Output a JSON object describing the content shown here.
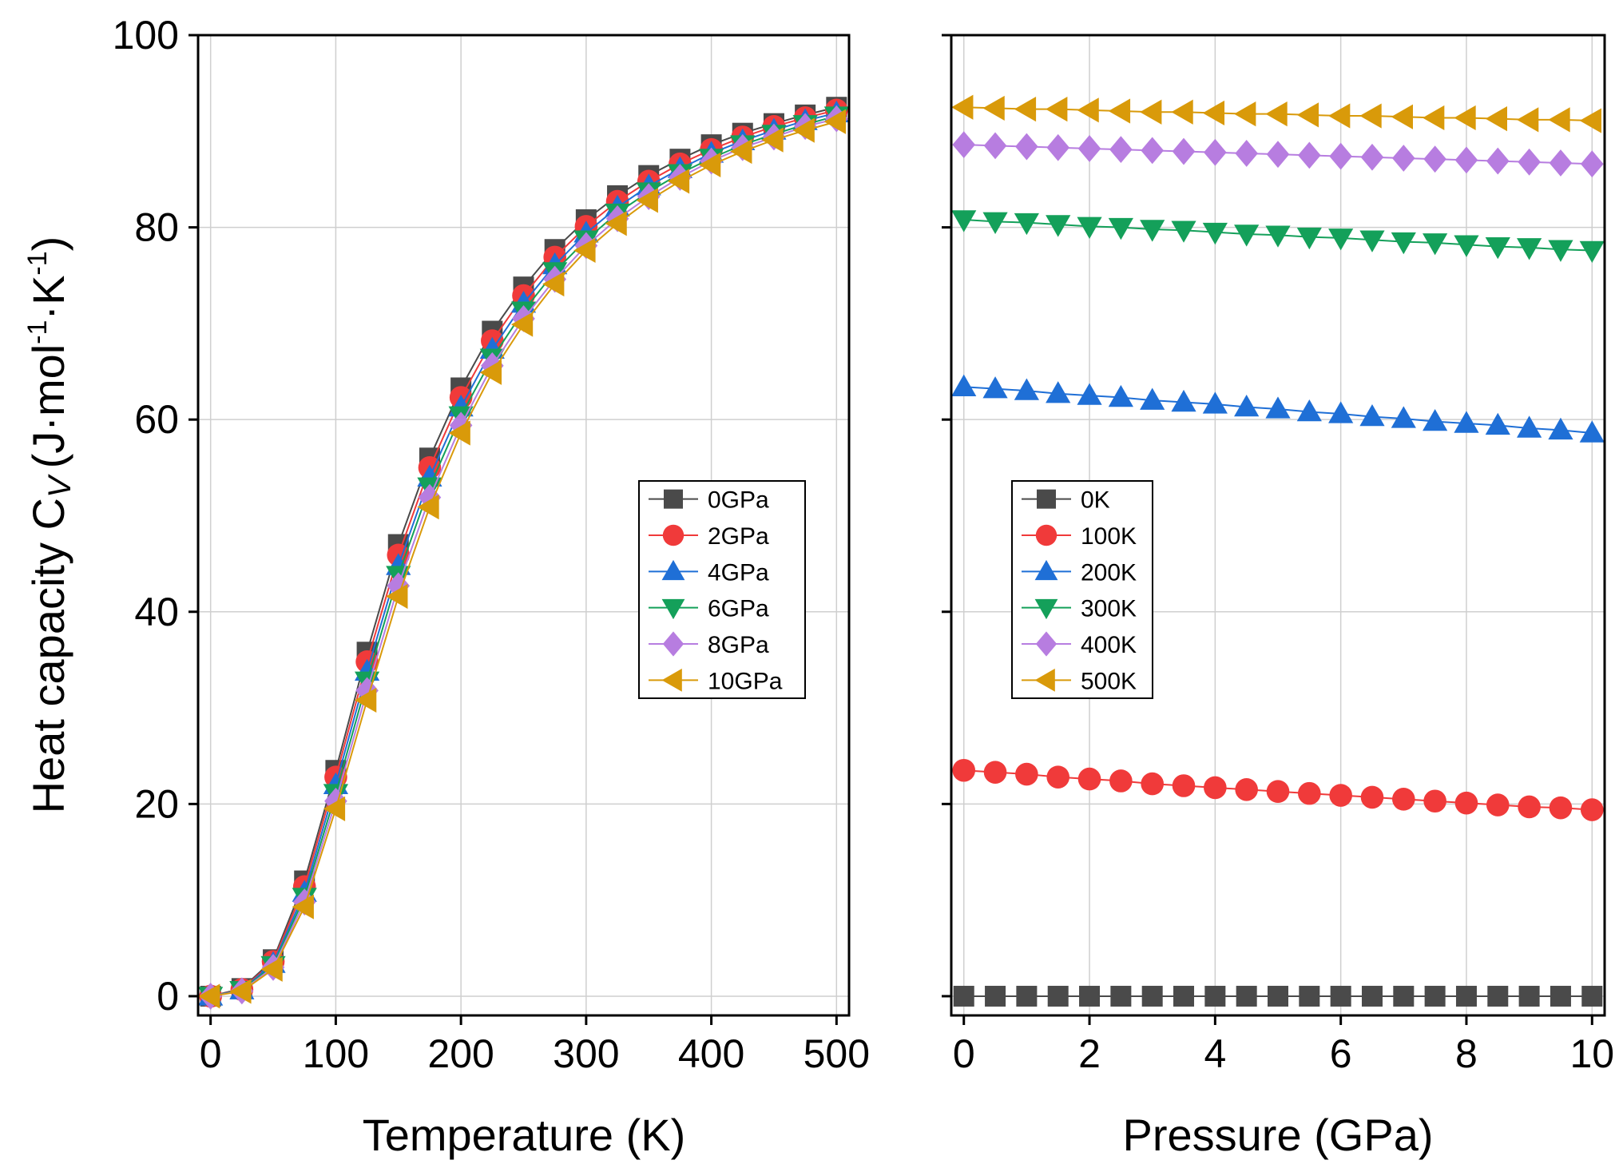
{
  "chart_data": [
    {
      "type": "line",
      "panel": "left",
      "title": "",
      "xlabel": "Temperature (K)",
      "ylabel": "Heat capacity C",
      "ylabel_sub": "V",
      "ylabel_units": "(J·mol",
      "ylabel_exp1": "-1",
      "ylabel_mid": "·K",
      "ylabel_exp2": "-1",
      "ylabel_close": ")",
      "xlim": [
        -10,
        510
      ],
      "ylim": [
        -2,
        100
      ],
      "xticks": [
        0,
        100,
        200,
        300,
        400,
        500
      ],
      "yticks": [
        0,
        20,
        40,
        60,
        80,
        100
      ],
      "grid": true,
      "legend_position": "center-right",
      "x": [
        0,
        25,
        50,
        75,
        100,
        125,
        150,
        175,
        200,
        225,
        250,
        275,
        300,
        325,
        350,
        375,
        400,
        425,
        450,
        475,
        500
      ],
      "series": [
        {
          "name": "0GPa",
          "color": "#4a4a4a",
          "marker": "square",
          "values": [
            0,
            0.8,
            3.8,
            12,
            23.5,
            35.8,
            47,
            56,
            63.3,
            69.2,
            73.8,
            77.7,
            80.8,
            83.3,
            85.4,
            87.1,
            88.6,
            89.8,
            90.8,
            91.7,
            92.5
          ]
        },
        {
          "name": "2GPa",
          "color": "#f03a3a",
          "marker": "circle",
          "values": [
            0,
            0.7,
            3.6,
            11.4,
            22.8,
            34.8,
            45.9,
            55,
            62.3,
            68.2,
            72.9,
            76.9,
            80.1,
            82.7,
            84.8,
            86.6,
            88.1,
            89.4,
            90.5,
            91.4,
            92.2
          ]
        },
        {
          "name": "4GPa",
          "color": "#1f6fd6",
          "marker": "triangle-up",
          "values": [
            0,
            0.65,
            3.4,
            10.8,
            22,
            33.8,
            44.8,
            54,
            61.3,
            67.3,
            72.1,
            76.1,
            79.4,
            82.1,
            84.3,
            86.1,
            87.7,
            89,
            90.1,
            91.1,
            91.9
          ]
        },
        {
          "name": "6GPa",
          "color": "#14a05a",
          "marker": "triangle-down",
          "values": [
            0,
            0.6,
            3.2,
            10.3,
            21.1,
            32.8,
            43.8,
            53,
            60.4,
            66.4,
            71.3,
            75.4,
            78.7,
            81.5,
            83.7,
            85.6,
            87.2,
            88.6,
            89.7,
            90.7,
            91.6
          ]
        },
        {
          "name": "8GPa",
          "color": "#b77de0",
          "marker": "diamond",
          "values": [
            0,
            0.55,
            3,
            9.8,
            20.3,
            31.8,
            42.7,
            51.9,
            59.4,
            65.6,
            70.5,
            74.6,
            78.1,
            80.9,
            83.2,
            85.2,
            86.9,
            88.3,
            89.4,
            90.5,
            91.3
          ]
        },
        {
          "name": "10GPa",
          "color": "#d99a0a",
          "marker": "triangle-left",
          "values": [
            0,
            0.5,
            2.8,
            9.3,
            19.5,
            30.8,
            41.6,
            50.9,
            58.6,
            64.9,
            69.9,
            74.1,
            77.6,
            80.4,
            82.8,
            84.8,
            86.5,
            87.9,
            89.1,
            90.1,
            91
          ]
        }
      ]
    },
    {
      "type": "line",
      "panel": "right",
      "title": "",
      "xlabel": "Pressure (GPa)",
      "ylabel": "",
      "xlim": [
        -0.2,
        10.2
      ],
      "ylim": [
        -2,
        100
      ],
      "xticks": [
        0,
        2,
        4,
        6,
        8,
        10
      ],
      "yticks": [
        0,
        20,
        40,
        60,
        80,
        100
      ],
      "grid": true,
      "legend_position": "center-left",
      "x": [
        0,
        0.5,
        1,
        1.5,
        2,
        2.5,
        3,
        3.5,
        4,
        4.5,
        5,
        5.5,
        6,
        6.5,
        7,
        7.5,
        8,
        8.5,
        9,
        9.5,
        10
      ],
      "series": [
        {
          "name": "0K",
          "color": "#4a4a4a",
          "marker": "square",
          "values": [
            0,
            0,
            0,
            0,
            0,
            0,
            0,
            0,
            0,
            0,
            0,
            0,
            0,
            0,
            0,
            0,
            0,
            0,
            0,
            0,
            0
          ]
        },
        {
          "name": "100K",
          "color": "#f03a3a",
          "marker": "circle",
          "values": [
            23.5,
            23.3,
            23.1,
            22.8,
            22.6,
            22.4,
            22.1,
            21.9,
            21.7,
            21.5,
            21.3,
            21.1,
            20.9,
            20.7,
            20.5,
            20.3,
            20.1,
            19.9,
            19.7,
            19.6,
            19.4
          ]
        },
        {
          "name": "200K",
          "color": "#1f6fd6",
          "marker": "triangle-up",
          "values": [
            63.4,
            63.2,
            63,
            62.7,
            62.5,
            62.3,
            62,
            61.8,
            61.6,
            61.3,
            61.1,
            60.8,
            60.6,
            60.3,
            60.1,
            59.8,
            59.6,
            59.4,
            59.1,
            58.9,
            58.6
          ]
        },
        {
          "name": "300K",
          "color": "#14a05a",
          "marker": "triangle-down",
          "values": [
            80.8,
            80.6,
            80.5,
            80.3,
            80.1,
            80,
            79.8,
            79.7,
            79.5,
            79.3,
            79.2,
            79,
            78.9,
            78.7,
            78.5,
            78.4,
            78.2,
            78,
            77.9,
            77.7,
            77.6
          ]
        },
        {
          "name": "400K",
          "color": "#b77de0",
          "marker": "diamond",
          "values": [
            88.6,
            88.5,
            88.4,
            88.3,
            88.2,
            88.1,
            88,
            87.9,
            87.8,
            87.7,
            87.6,
            87.5,
            87.4,
            87.3,
            87.2,
            87.1,
            87,
            86.9,
            86.8,
            86.7,
            86.6
          ]
        },
        {
          "name": "500K",
          "color": "#d99a0a",
          "marker": "triangle-left",
          "values": [
            92.5,
            92.4,
            92.3,
            92.3,
            92.2,
            92.1,
            92,
            92,
            91.9,
            91.8,
            91.8,
            91.7,
            91.6,
            91.6,
            91.5,
            91.4,
            91.4,
            91.3,
            91.2,
            91.2,
            91.1
          ]
        }
      ]
    }
  ]
}
